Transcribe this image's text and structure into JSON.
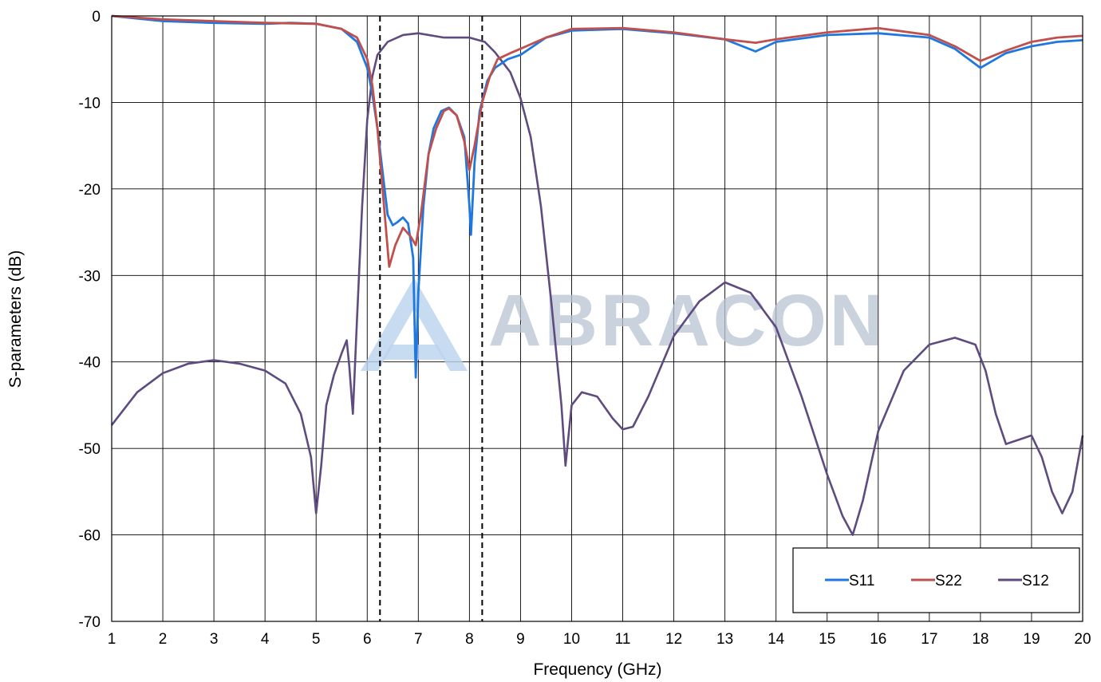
{
  "chart_data": {
    "type": "line",
    "title": "",
    "xlabel": "Frequency (GHz)",
    "ylabel": "S-parameters (dB)",
    "xlim": [
      1,
      20
    ],
    "ylim": [
      -70,
      0
    ],
    "xticks": [
      "1",
      "2",
      "3",
      "4",
      "5",
      "6",
      "7",
      "8",
      "9",
      "10",
      "11",
      "12",
      "13",
      "14",
      "15",
      "16",
      "17",
      "18",
      "19",
      "20"
    ],
    "yticks": [
      "0",
      "-10",
      "-20",
      "-30",
      "-40",
      "-50",
      "-60",
      "-70"
    ],
    "grid": true,
    "legend_position": "bottom-right",
    "watermark": "ABRACON",
    "markers": [
      {
        "x": 6.25,
        "style": "dashed"
      },
      {
        "x": 8.25,
        "style": "dashed"
      }
    ],
    "series": [
      {
        "name": "S11",
        "color": "#1f77e0",
        "points": [
          [
            1,
            0
          ],
          [
            2,
            -0.6
          ],
          [
            3,
            -0.8
          ],
          [
            4,
            -0.9
          ],
          [
            4.5,
            -0.8
          ],
          [
            5,
            -0.9
          ],
          [
            5.5,
            -1.5
          ],
          [
            5.8,
            -3
          ],
          [
            6.0,
            -6
          ],
          [
            6.1,
            -9
          ],
          [
            6.2,
            -13
          ],
          [
            6.3,
            -18
          ],
          [
            6.4,
            -23
          ],
          [
            6.5,
            -24.2
          ],
          [
            6.6,
            -23.8
          ],
          [
            6.7,
            -23.3
          ],
          [
            6.8,
            -24
          ],
          [
            6.9,
            -28
          ],
          [
            6.95,
            -41.8
          ],
          [
            7.0,
            -32
          ],
          [
            7.1,
            -22
          ],
          [
            7.2,
            -16
          ],
          [
            7.3,
            -13
          ],
          [
            7.45,
            -11
          ],
          [
            7.6,
            -10.6
          ],
          [
            7.75,
            -11.5
          ],
          [
            7.9,
            -14
          ],
          [
            8.0,
            -22
          ],
          [
            8.03,
            -25.3
          ],
          [
            8.1,
            -17
          ],
          [
            8.2,
            -11
          ],
          [
            8.35,
            -7.5
          ],
          [
            8.5,
            -6
          ],
          [
            8.75,
            -5
          ],
          [
            9,
            -4.5
          ],
          [
            9.5,
            -2.5
          ],
          [
            10,
            -1.7
          ],
          [
            11,
            -1.5
          ],
          [
            12,
            -2
          ],
          [
            13,
            -2.7
          ],
          [
            13.6,
            -4.1
          ],
          [
            14,
            -3
          ],
          [
            15,
            -2.2
          ],
          [
            16,
            -2
          ],
          [
            17,
            -2.5
          ],
          [
            17.5,
            -3.8
          ],
          [
            18,
            -6
          ],
          [
            18.5,
            -4.3
          ],
          [
            19,
            -3.5
          ],
          [
            19.5,
            -3
          ],
          [
            20,
            -2.8
          ]
        ]
      },
      {
        "name": "S22",
        "color": "#c0504d",
        "points": [
          [
            1,
            0
          ],
          [
            2,
            -0.4
          ],
          [
            3,
            -0.6
          ],
          [
            4,
            -0.8
          ],
          [
            5,
            -0.9
          ],
          [
            5.5,
            -1.5
          ],
          [
            5.8,
            -2.5
          ],
          [
            6.0,
            -5
          ],
          [
            6.1,
            -8
          ],
          [
            6.2,
            -13
          ],
          [
            6.3,
            -20
          ],
          [
            6.43,
            -29
          ],
          [
            6.55,
            -26.5
          ],
          [
            6.7,
            -24.5
          ],
          [
            6.85,
            -25.5
          ],
          [
            6.95,
            -26.5
          ],
          [
            7.05,
            -23
          ],
          [
            7.2,
            -16
          ],
          [
            7.35,
            -13
          ],
          [
            7.5,
            -11
          ],
          [
            7.6,
            -10.7
          ],
          [
            7.75,
            -11.5
          ],
          [
            7.9,
            -14.5
          ],
          [
            8.0,
            -17.8
          ],
          [
            8.1,
            -15
          ],
          [
            8.25,
            -10
          ],
          [
            8.4,
            -7
          ],
          [
            8.55,
            -5
          ],
          [
            8.8,
            -4.3
          ],
          [
            9,
            -3.8
          ],
          [
            9.5,
            -2.5
          ],
          [
            10,
            -1.5
          ],
          [
            11,
            -1.4
          ],
          [
            12,
            -1.9
          ],
          [
            13,
            -2.7
          ],
          [
            13.6,
            -3.1
          ],
          [
            14,
            -2.7
          ],
          [
            15,
            -1.9
          ],
          [
            16,
            -1.4
          ],
          [
            17,
            -2.2
          ],
          [
            17.5,
            -3.5
          ],
          [
            18,
            -5.2
          ],
          [
            18.5,
            -4
          ],
          [
            19,
            -3
          ],
          [
            19.5,
            -2.5
          ],
          [
            20,
            -2.3
          ]
        ]
      },
      {
        "name": "S12",
        "color": "#5e4b7f",
        "points": [
          [
            1,
            -47.3
          ],
          [
            1.5,
            -43.5
          ],
          [
            2,
            -41.3
          ],
          [
            2.5,
            -40.2
          ],
          [
            3,
            -39.8
          ],
          [
            3.5,
            -40.2
          ],
          [
            4,
            -41
          ],
          [
            4.4,
            -42.5
          ],
          [
            4.7,
            -46
          ],
          [
            4.9,
            -51
          ],
          [
            5.0,
            -57.5
          ],
          [
            5.1,
            -52
          ],
          [
            5.2,
            -45
          ],
          [
            5.35,
            -41.5
          ],
          [
            5.5,
            -39
          ],
          [
            5.6,
            -37.5
          ],
          [
            5.65,
            -40.5
          ],
          [
            5.72,
            -46
          ],
          [
            5.8,
            -35
          ],
          [
            5.9,
            -22
          ],
          [
            6.0,
            -12
          ],
          [
            6.1,
            -7
          ],
          [
            6.2,
            -4.5
          ],
          [
            6.4,
            -3
          ],
          [
            6.7,
            -2.2
          ],
          [
            7,
            -2
          ],
          [
            7.5,
            -2.5
          ],
          [
            8,
            -2.5
          ],
          [
            8.3,
            -3
          ],
          [
            8.5,
            -4.2
          ],
          [
            8.8,
            -6.5
          ],
          [
            9,
            -9.5
          ],
          [
            9.2,
            -14
          ],
          [
            9.4,
            -22
          ],
          [
            9.6,
            -33
          ],
          [
            9.8,
            -45
          ],
          [
            9.88,
            -52
          ],
          [
            10.0,
            -45
          ],
          [
            10.2,
            -43.5
          ],
          [
            10.5,
            -44
          ],
          [
            10.8,
            -46.5
          ],
          [
            11,
            -47.8
          ],
          [
            11.2,
            -47.5
          ],
          [
            11.5,
            -44
          ],
          [
            12,
            -37
          ],
          [
            12.5,
            -33
          ],
          [
            13,
            -30.8
          ],
          [
            13.5,
            -32
          ],
          [
            14,
            -36
          ],
          [
            14.5,
            -44
          ],
          [
            15,
            -53
          ],
          [
            15.3,
            -57.8
          ],
          [
            15.5,
            -60
          ],
          [
            15.7,
            -56
          ],
          [
            16,
            -48
          ],
          [
            16.5,
            -41
          ],
          [
            17,
            -38
          ],
          [
            17.5,
            -37.2
          ],
          [
            17.9,
            -38
          ],
          [
            18.1,
            -41
          ],
          [
            18.3,
            -46
          ],
          [
            18.5,
            -49.5
          ],
          [
            19,
            -48.5
          ],
          [
            19.2,
            -51
          ],
          [
            19.4,
            -55
          ],
          [
            19.6,
            -57.5
          ],
          [
            19.8,
            -55
          ],
          [
            20,
            -48.5
          ]
        ]
      }
    ]
  }
}
